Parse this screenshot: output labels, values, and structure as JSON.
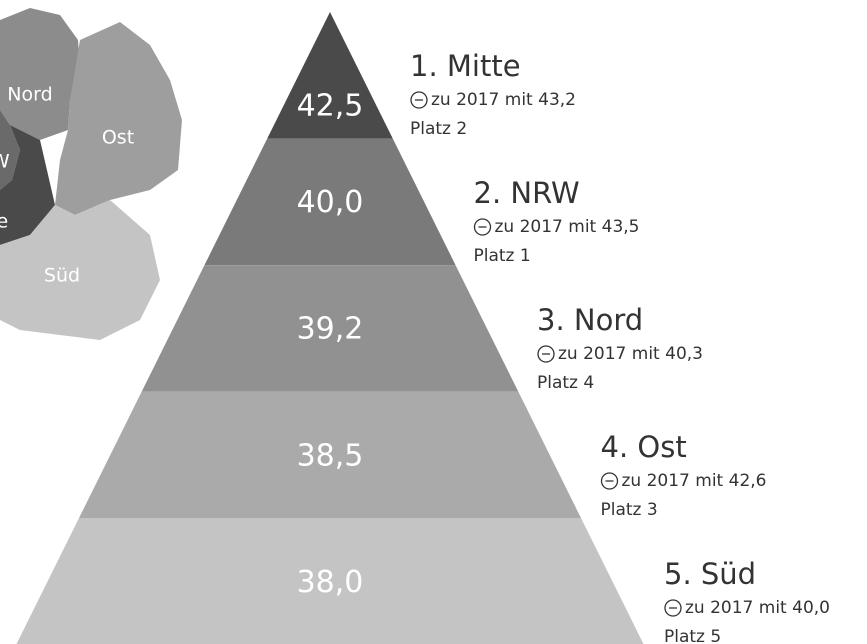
{
  "map": {
    "regions": [
      "Nord",
      "Ost",
      "Süd",
      "NRW",
      "Mitte"
    ]
  },
  "levels": [
    {
      "title": "1. Mitte",
      "value": "42,5",
      "comparison": "zu 2017 mit 43,2",
      "rank": "Platz 2"
    },
    {
      "title": "2. NRW",
      "value": "40,0",
      "comparison": "zu 2017 mit 43,5",
      "rank": "Platz 1"
    },
    {
      "title": "3. Nord",
      "value": "39,2",
      "comparison": "zu 2017 mit 40,3",
      "rank": "Platz 4"
    },
    {
      "title": "4. Ost",
      "value": "38,5",
      "comparison": "zu 2017 mit 42,6",
      "rank": "Platz 3"
    },
    {
      "title": "5. Süd",
      "value": "38,0",
      "comparison": "zu 2017 mit 40,0",
      "rank": "Platz 5"
    }
  ]
}
